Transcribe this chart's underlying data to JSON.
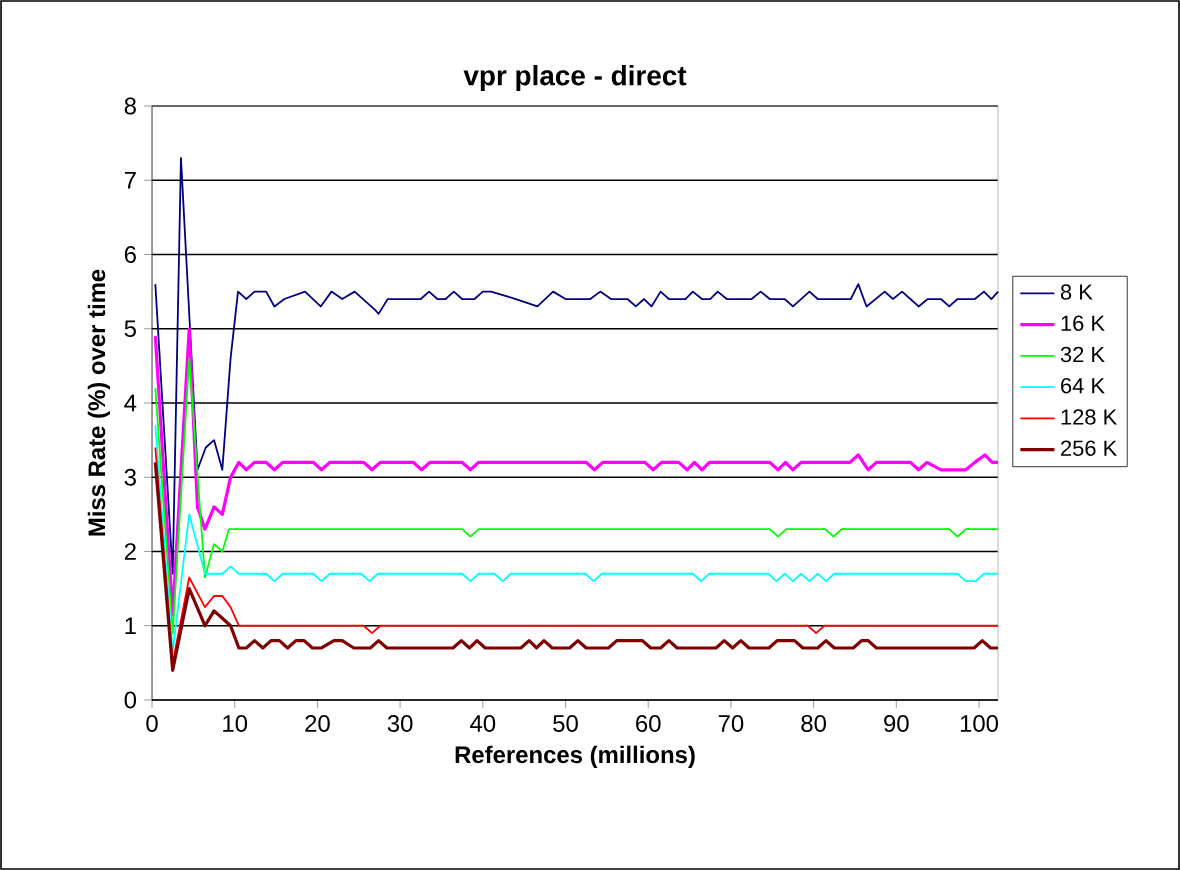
{
  "chart_data": {
    "type": "line",
    "title": "vpr place - direct",
    "xlabel": "References (millions)",
    "ylabel": "Miss Rate (%) over time",
    "xlim": [
      0,
      102.3
    ],
    "ylim": [
      0,
      8
    ],
    "xticks": [
      0,
      10,
      20,
      30,
      40,
      50,
      60,
      70,
      80,
      90,
      100
    ],
    "yticks": [
      0,
      1,
      2,
      3,
      4,
      5,
      6,
      7,
      8
    ],
    "grid": "y",
    "legend": "right",
    "series": [
      {
        "name": "8 K",
        "color": "#000080",
        "x": [
          0.4,
          2.5,
          3.5,
          5.5,
          6.5,
          7.5,
          8.5,
          9.5,
          10.4,
          11.4,
          12.4,
          13.8,
          14.8,
          16,
          18.5,
          20.4,
          21.7,
          23,
          24.5,
          27,
          27.4,
          28.5,
          32.5,
          33.5,
          34.5,
          35.5,
          36.5,
          37.5,
          39,
          40,
          41,
          44,
          46.6,
          48.5,
          50,
          53,
          54.2,
          55.5,
          57.5,
          58.5,
          59.5,
          60.4,
          61.5,
          62.5,
          64.5,
          65.4,
          66.5,
          67.5,
          68.4,
          69.5,
          72.5,
          73.6,
          74.7,
          76.5,
          77.5,
          78.5,
          79.5,
          80.5,
          84.5,
          85.4,
          86.4,
          87.5,
          88.6,
          89.6,
          90.7,
          91.7,
          92.7,
          93.8,
          95.4,
          96.4,
          97.4,
          99.5,
          100.6,
          101.5,
          102.3
        ],
        "values": [
          5.6,
          1.7,
          7.3,
          3.1,
          3.4,
          3.5,
          3.1,
          4.6,
          5.5,
          5.4,
          5.5,
          5.5,
          5.3,
          5.4,
          5.5,
          5.3,
          5.5,
          5.4,
          5.5,
          5.25,
          5.2,
          5.4,
          5.4,
          5.5,
          5.4,
          5.4,
          5.5,
          5.4,
          5.4,
          5.5,
          5.5,
          5.4,
          5.3,
          5.5,
          5.4,
          5.4,
          5.5,
          5.4,
          5.4,
          5.3,
          5.4,
          5.3,
          5.5,
          5.4,
          5.4,
          5.5,
          5.4,
          5.4,
          5.5,
          5.4,
          5.4,
          5.5,
          5.4,
          5.4,
          5.3,
          5.4,
          5.5,
          5.4,
          5.4,
          5.6,
          5.3,
          5.4,
          5.5,
          5.4,
          5.5,
          5.4,
          5.3,
          5.4,
          5.4,
          5.3,
          5.4,
          5.4,
          5.5,
          5.4,
          5.5
        ]
      },
      {
        "name": "16 K",
        "color": "#ff00ff",
        "x": [
          0.4,
          2.5,
          4.5,
          5.5,
          6.4,
          7.5,
          8.5,
          9.5,
          10.5,
          11.4,
          12.4,
          13.8,
          14.8,
          15.8,
          19.5,
          20.5,
          21.5,
          25.6,
          26.6,
          27.6,
          31.6,
          32.6,
          33.6,
          37.5,
          38.5,
          39.5,
          52.5,
          53.5,
          54.5,
          59.6,
          60.6,
          61.6,
          63.7,
          64.7,
          65.6,
          66.5,
          67.4,
          74.7,
          75.7,
          76.6,
          77.5,
          78.5,
          84.4,
          85.4,
          86.6,
          87.6,
          91.7,
          92.7,
          93.7,
          95.4,
          98.4,
          99.5,
          100.7,
          101.6,
          102.3
        ],
        "values": [
          4.9,
          1.15,
          5.0,
          2.6,
          2.3,
          2.6,
          2.5,
          3.0,
          3.2,
          3.1,
          3.2,
          3.2,
          3.1,
          3.2,
          3.2,
          3.1,
          3.2,
          3.2,
          3.1,
          3.2,
          3.2,
          3.1,
          3.2,
          3.2,
          3.1,
          3.2,
          3.2,
          3.1,
          3.2,
          3.2,
          3.1,
          3.2,
          3.2,
          3.1,
          3.2,
          3.1,
          3.2,
          3.2,
          3.1,
          3.2,
          3.1,
          3.2,
          3.2,
          3.3,
          3.1,
          3.2,
          3.2,
          3.1,
          3.2,
          3.1,
          3.1,
          3.2,
          3.3,
          3.2,
          3.2
        ]
      },
      {
        "name": "32 K",
        "color": "#00ff00",
        "x": [
          0.4,
          2.5,
          4.5,
          6.4,
          7.5,
          8.5,
          9.3,
          37.5,
          38.5,
          39.5,
          74.7,
          75.7,
          76.7,
          81.4,
          82.4,
          83.4,
          96.4,
          97.4,
          98.4,
          102.3
        ],
        "values": [
          4.2,
          0.9,
          4.6,
          1.65,
          2.1,
          2.0,
          2.3,
          2.3,
          2.2,
          2.3,
          2.3,
          2.2,
          2.3,
          2.3,
          2.2,
          2.3,
          2.3,
          2.2,
          2.3,
          2.3
        ]
      },
      {
        "name": "64 K",
        "color": "#00ffff",
        "x": [
          0.4,
          2.5,
          4.5,
          6.4,
          7.5,
          8.5,
          9.5,
          10.5,
          13.8,
          14.8,
          15.8,
          19.5,
          20.5,
          21.5,
          25.3,
          26.3,
          27.3,
          37.5,
          38.5,
          39.5,
          41.4,
          42.4,
          43.4,
          52.4,
          53.4,
          54.4,
          65.4,
          66.4,
          67.4,
          74.5,
          75.5,
          76.5,
          77.5,
          78.5,
          79.5,
          80.5,
          81.5,
          82.5,
          97.4,
          98.4,
          99.6,
          100.6,
          102.3
        ],
        "values": [
          3.7,
          0.65,
          2.5,
          1.7,
          1.7,
          1.7,
          1.8,
          1.7,
          1.7,
          1.6,
          1.7,
          1.7,
          1.6,
          1.7,
          1.7,
          1.6,
          1.7,
          1.7,
          1.6,
          1.7,
          1.7,
          1.6,
          1.7,
          1.7,
          1.6,
          1.7,
          1.7,
          1.6,
          1.7,
          1.7,
          1.6,
          1.7,
          1.6,
          1.7,
          1.6,
          1.7,
          1.6,
          1.7,
          1.7,
          1.6,
          1.6,
          1.7,
          1.7
        ]
      },
      {
        "name": "128 K",
        "color": "#ff0000",
        "x": [
          0.4,
          2.5,
          4.5,
          6.4,
          7.5,
          8.5,
          9.5,
          10.5,
          25.6,
          26.6,
          27.6,
          79.3,
          80.3,
          81.3,
          102.3
        ],
        "values": [
          3.4,
          0.5,
          1.65,
          1.25,
          1.4,
          1.4,
          1.25,
          1.0,
          1.0,
          0.9,
          1.0,
          1.0,
          0.9,
          1.0,
          1.0
        ]
      },
      {
        "name": "256 K",
        "color": "#800000",
        "x": [
          0.4,
          2.5,
          4.5,
          6.4,
          7.5,
          8.5,
          9.5,
          10.5,
          11.4,
          12.4,
          13.4,
          14.4,
          15.4,
          16.4,
          17.4,
          18.4,
          19.4,
          20.5,
          22,
          23,
          24.4,
          26.4,
          27.4,
          28.4,
          36.4,
          37.4,
          38.4,
          39.3,
          40.3,
          44.6,
          45.6,
          46.5,
          47.4,
          48.4,
          50.5,
          51.5,
          52.5,
          55.2,
          56.2,
          59.3,
          60.3,
          61.5,
          62.5,
          63.5,
          68.2,
          69.2,
          70.2,
          71.2,
          72.2,
          74.6,
          75.6,
          77.7,
          78.7,
          80.5,
          81.5,
          82.5,
          84.8,
          85.8,
          86.6,
          87.6,
          99.4,
          100.4,
          101.4,
          102.3
        ],
        "values": [
          3.2,
          0.4,
          1.5,
          1.0,
          1.2,
          1.1,
          1.0,
          0.7,
          0.7,
          0.8,
          0.7,
          0.8,
          0.8,
          0.7,
          0.8,
          0.8,
          0.7,
          0.7,
          0.8,
          0.8,
          0.7,
          0.7,
          0.8,
          0.7,
          0.7,
          0.8,
          0.7,
          0.8,
          0.7,
          0.7,
          0.8,
          0.7,
          0.8,
          0.7,
          0.7,
          0.8,
          0.7,
          0.7,
          0.8,
          0.8,
          0.7,
          0.7,
          0.8,
          0.7,
          0.7,
          0.8,
          0.7,
          0.8,
          0.7,
          0.7,
          0.8,
          0.8,
          0.7,
          0.7,
          0.8,
          0.7,
          0.7,
          0.8,
          0.8,
          0.7,
          0.7,
          0.8,
          0.7,
          0.7
        ]
      }
    ]
  }
}
